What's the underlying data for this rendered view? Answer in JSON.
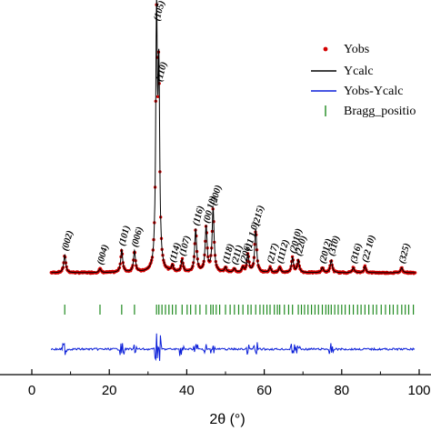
{
  "chart_data": {
    "type": "line",
    "xlabel": "2θ (°)",
    "ylabel": "",
    "xlim": [
      0,
      100
    ],
    "xticks": [
      "0",
      "20",
      "40",
      "60",
      "80",
      "100"
    ],
    "colors": {
      "yobs": "#d40000",
      "ycalc": "#000000",
      "diff": "#0a1ed8",
      "bragg": "#1f8a1f"
    },
    "legend_position": "top-right",
    "series": [
      {
        "name": "Yobs",
        "style": "points"
      },
      {
        "name": "Ycalc",
        "style": "line"
      },
      {
        "name": "Yobs-Ycalc",
        "style": "line"
      },
      {
        "name": "Bragg_positio",
        "style": "tick"
      }
    ],
    "peaks": [
      {
        "hkl": "(002)",
        "x": 8.5,
        "h": 0.07
      },
      {
        "hkl": "(004)",
        "x": 17.6,
        "h": 0.015
      },
      {
        "hkl": "(101)",
        "x": 23.2,
        "h": 0.09
      },
      {
        "hkl": "(006)",
        "x": 26.5,
        "h": 0.085
      },
      {
        "hkl": "(105)",
        "x": 32.2,
        "h": 0.98
      },
      {
        "hkl": "(110)",
        "x": 32.8,
        "h": 0.74
      },
      {
        "hkl": "(114)",
        "x": 36.3,
        "h": 0.025
      },
      {
        "hkl": "(107)",
        "x": 38.8,
        "h": 0.05
      },
      {
        "hkl": "(116)",
        "x": 42.3,
        "h": 0.17
      },
      {
        "hkl": "(00 10)",
        "x": 45.0,
        "h": 0.18
      },
      {
        "hkl": "(200)",
        "x": 46.8,
        "h": 0.25
      },
      {
        "hkl": "(118)",
        "x": 50.0,
        "h": 0.02
      },
      {
        "hkl": "(211)",
        "x": 52.3,
        "h": 0.015
      },
      {
        "hkl": "(206)",
        "x": 54.5,
        "h": 0.02
      },
      {
        "hkl": "(11 1 0)",
        "x": 55.8,
        "h": 0.07
      },
      {
        "hkl": "(215)",
        "x": 57.8,
        "h": 0.17
      },
      {
        "hkl": "(217)",
        "x": 61.5,
        "h": 0.02
      },
      {
        "hkl": "(1112)",
        "x": 64.0,
        "h": 0.02
      },
      {
        "hkl": "(2010)",
        "x": 67.3,
        "h": 0.06
      },
      {
        "hkl": "(220)",
        "x": 68.8,
        "h": 0.05
      },
      {
        "hkl": "(2012)",
        "x": 75.0,
        "h": 0.02
      },
      {
        "hkl": "(310)",
        "x": 77.3,
        "h": 0.05
      },
      {
        "hkl": "(316)",
        "x": 83.0,
        "h": 0.02
      },
      {
        "hkl": "(22 10)",
        "x": 86.0,
        "h": 0.025
      },
      {
        "hkl": "(325)",
        "x": 95.5,
        "h": 0.02
      }
    ],
    "bragg_positions": [
      8.5,
      17.6,
      23.2,
      26.5,
      32.2,
      32.8,
      33.6,
      34.5,
      35.4,
      36.3,
      37.2,
      38.8,
      40.1,
      41.0,
      42.3,
      43.4,
      45.0,
      46.2,
      46.8,
      47.6,
      48.5,
      50.0,
      51.2,
      52.3,
      53.4,
      54.5,
      55.8,
      56.6,
      57.8,
      58.9,
      59.8,
      60.7,
      61.5,
      62.6,
      63.4,
      64.0,
      65.2,
      66.3,
      67.3,
      68.8,
      69.6,
      70.4,
      71.3,
      72.2,
      73.1,
      74.0,
      75.0,
      75.9,
      76.6,
      77.3,
      78.2,
      79.1,
      80.0,
      80.9,
      82.0,
      83.0,
      84.1,
      85.0,
      86.0,
      87.0,
      88.1,
      89.0,
      90.2,
      91.3,
      92.4,
      93.3,
      94.4,
      95.5,
      96.4,
      97.3,
      98.5
    ]
  }
}
